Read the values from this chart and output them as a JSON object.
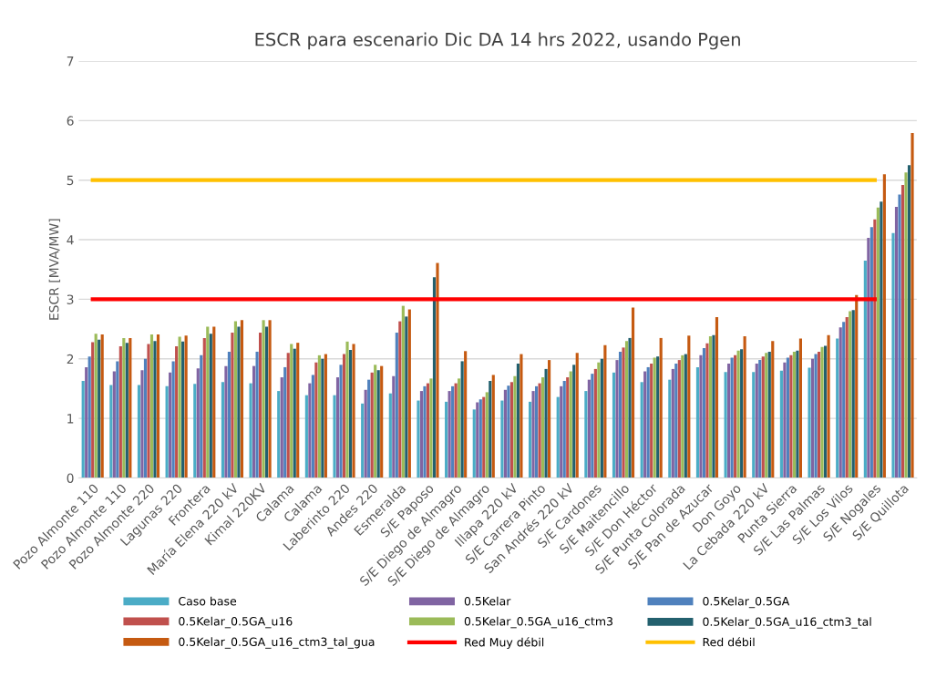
{
  "chart_data": {
    "type": "bar",
    "title": "ESCR para escenario Dic DA 14 hrs 2022, usando Pgen",
    "ylabel": "ESCR [MVA/MW]",
    "categories": [
      "Pozo Almonte 110",
      "Pozo Almonte 110",
      "Pozo Almonte 220",
      "Lagunas 220",
      "Frontera",
      "María Elena 220 kV",
      "Kimal 220KV",
      "Calama",
      "Calama",
      "Laberinto 220",
      "Andes 220",
      "Esmeralda",
      "S/E Paposo",
      "S/E Diego de Almagro",
      "S/E Diego de Almagro",
      "Illapa 220 kV",
      "S/E Carrera Pinto",
      "San Andrés 220 kV",
      "S/E Cardones",
      "S/E Maitencillo",
      "S/E Don Héctor",
      "S/E Punta Colorada",
      "S/E Pan de Azucar",
      "Don Goyo",
      "La Cebada 220 kV",
      "Punta Sierra",
      "S/E Las Palmas",
      "S/E Los Vilos",
      "S/E Nogales",
      "S/E Quillota"
    ],
    "series": [
      {
        "name": "Caso base",
        "color": "#4bacc6",
        "values": [
          1.63,
          1.56,
          1.56,
          1.54,
          1.58,
          1.61,
          1.59,
          1.46,
          1.39,
          1.39,
          1.25,
          1.42,
          1.3,
          1.28,
          1.15,
          1.3,
          1.28,
          1.36,
          1.46,
          1.77,
          1.61,
          1.65,
          1.86,
          1.78,
          1.78,
          1.8,
          1.85,
          2.34,
          3.65,
          4.11
        ]
      },
      {
        "name": "0.5Kelar",
        "color": "#8064a2",
        "values": [
          1.86,
          1.79,
          1.81,
          1.77,
          1.84,
          1.88,
          1.88,
          1.69,
          1.59,
          1.69,
          1.48,
          1.71,
          1.46,
          1.46,
          1.27,
          1.48,
          1.46,
          1.54,
          1.65,
          1.98,
          1.79,
          1.83,
          2.06,
          1.92,
          1.92,
          1.94,
          2.0,
          2.53,
          4.03,
          4.55
        ]
      },
      {
        "name": "0.5Kelar_0.5GA",
        "color": "#4f81bd",
        "values": [
          2.04,
          1.96,
          2.0,
          1.96,
          2.06,
          2.12,
          2.12,
          1.86,
          1.73,
          1.9,
          1.65,
          2.44,
          1.54,
          1.54,
          1.32,
          1.55,
          1.54,
          1.63,
          1.75,
          2.12,
          1.86,
          1.92,
          2.18,
          2.02,
          1.98,
          2.02,
          2.08,
          2.62,
          4.21,
          4.76
        ]
      },
      {
        "name": "0.5Kelar_0.5GA_u16",
        "color": "#c0504d",
        "values": [
          2.28,
          2.21,
          2.25,
          2.21,
          2.35,
          2.44,
          2.44,
          2.1,
          1.94,
          2.08,
          1.77,
          2.63,
          1.59,
          1.59,
          1.36,
          1.61,
          1.59,
          1.69,
          1.83,
          2.19,
          1.92,
          1.98,
          2.26,
          2.06,
          2.04,
          2.06,
          2.12,
          2.7,
          4.34,
          4.92
        ]
      },
      {
        "name": "0.5Kelar_0.5GA_u16_ctm3",
        "color": "#9bbb59",
        "values": [
          2.42,
          2.35,
          2.41,
          2.37,
          2.54,
          2.63,
          2.65,
          2.25,
          2.06,
          2.29,
          1.9,
          2.89,
          1.67,
          1.67,
          1.44,
          1.71,
          1.69,
          1.79,
          1.94,
          2.3,
          2.02,
          2.06,
          2.38,
          2.14,
          2.1,
          2.12,
          2.2,
          2.8,
          4.54,
          5.13
        ]
      },
      {
        "name": "0.5Kelar_0.5GA_u16_ctm3_tal",
        "color": "#23606e",
        "values": [
          2.32,
          2.27,
          2.3,
          2.29,
          2.42,
          2.54,
          2.54,
          2.17,
          2.0,
          2.15,
          1.81,
          2.71,
          3.37,
          1.96,
          1.63,
          1.92,
          1.83,
          1.9,
          2.0,
          2.35,
          2.04,
          2.08,
          2.4,
          2.16,
          2.12,
          2.14,
          2.22,
          2.82,
          4.64,
          5.25
        ]
      },
      {
        "name": "0.5Kelar_0.5GA_u16_ctm3_tal_gua",
        "color": "#c55a11",
        "values": [
          2.41,
          2.35,
          2.41,
          2.39,
          2.54,
          2.65,
          2.65,
          2.27,
          2.08,
          2.25,
          1.88,
          2.83,
          3.61,
          2.13,
          1.73,
          2.08,
          1.98,
          2.1,
          2.23,
          2.86,
          2.35,
          2.39,
          2.7,
          2.38,
          2.3,
          2.34,
          2.4,
          3.07,
          5.1,
          5.79
        ]
      },
      {
        "name": "Red Muy débil",
        "type": "line",
        "color": "#ff0000",
        "values": [
          3,
          3,
          3,
          3,
          3,
          3,
          3,
          3,
          3,
          3,
          3,
          3,
          3,
          3,
          3,
          3,
          3,
          3,
          3,
          3,
          3,
          3,
          3,
          3,
          3,
          3,
          3,
          3,
          3,
          null
        ]
      },
      {
        "name": "Red débil",
        "type": "line",
        "color": "#ffc000",
        "values": [
          5,
          5,
          5,
          5,
          5,
          5,
          5,
          5,
          5,
          5,
          5,
          5,
          5,
          5,
          5,
          5,
          5,
          5,
          5,
          5,
          5,
          5,
          5,
          5,
          5,
          5,
          5,
          5,
          5,
          null
        ]
      }
    ],
    "ylim": [
      0,
      7
    ],
    "yticks": [
      0,
      1,
      2,
      3,
      4,
      5,
      6,
      7
    ],
    "grid": "y",
    "legend": "bottom"
  }
}
